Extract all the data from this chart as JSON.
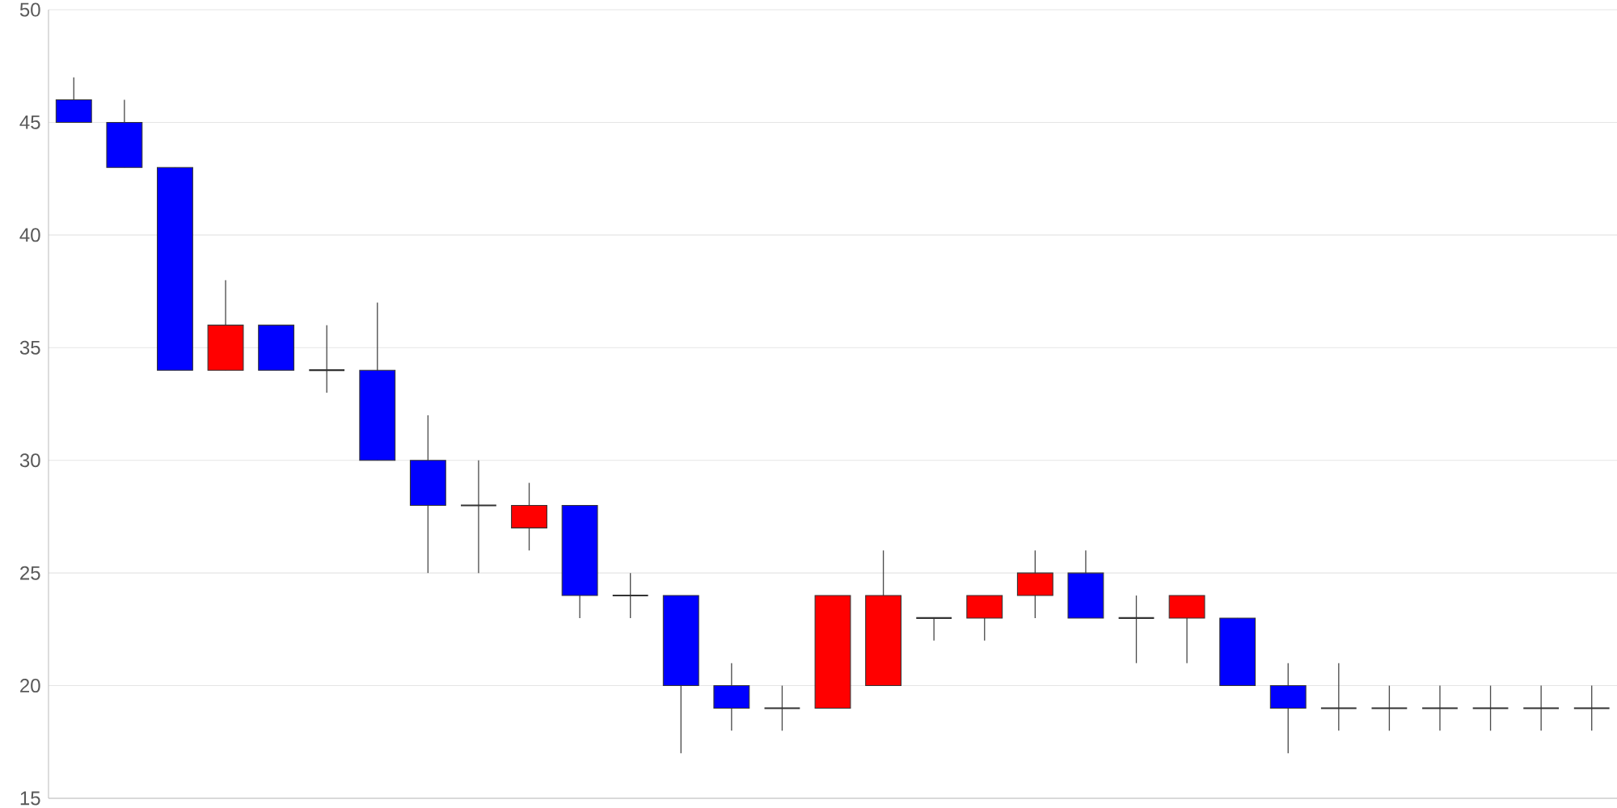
{
  "chart_data": {
    "type": "candlestick",
    "categories": [
      null,
      null,
      null,
      null,
      null,
      null,
      null,
      null,
      null,
      null,
      null,
      null,
      null,
      null,
      null,
      null,
      null,
      null,
      null,
      null,
      null,
      null,
      null,
      null,
      null,
      null,
      null,
      null,
      null,
      null,
      null
    ],
    "ohlc": [
      [
        46,
        47,
        45,
        45
      ],
      [
        45,
        46,
        43,
        43
      ],
      [
        43,
        43,
        34,
        34
      ],
      [
        34,
        38,
        34,
        36
      ],
      [
        36,
        36,
        34,
        34
      ],
      [
        34,
        36,
        33,
        34
      ],
      [
        34,
        37,
        30,
        30
      ],
      [
        30,
        32,
        25,
        28
      ],
      [
        28,
        30,
        25,
        28
      ],
      [
        27,
        29,
        26,
        28
      ],
      [
        28,
        28,
        23,
        24
      ],
      [
        24,
        25,
        23,
        24
      ],
      [
        24,
        24,
        17,
        20
      ],
      [
        20,
        21,
        18,
        19
      ],
      [
        19,
        20,
        18,
        19
      ],
      [
        19,
        24,
        19,
        24
      ],
      [
        20,
        26,
        20,
        24
      ],
      [
        23,
        23,
        22,
        23
      ],
      [
        23,
        24,
        22,
        24
      ],
      [
        24,
        26,
        23,
        25
      ],
      [
        25,
        26,
        23,
        23
      ],
      [
        23,
        24,
        21,
        23
      ],
      [
        23,
        24,
        21,
        24
      ],
      [
        23,
        23,
        20,
        20
      ],
      [
        20,
        21,
        17,
        19
      ],
      [
        19,
        21,
        18,
        19
      ],
      [
        19,
        20,
        18,
        19
      ],
      [
        19,
        20,
        18,
        19
      ],
      [
        19,
        20,
        18,
        19
      ],
      [
        19,
        20,
        18,
        19
      ],
      [
        19,
        20,
        18,
        19
      ]
    ],
    "colors": [
      "#0000ff",
      "#0000ff",
      "#0000ff",
      "#ff0000",
      "#0000ff",
      "#333333",
      "#0000ff",
      "#0000ff",
      "#333333",
      "#ff0000",
      "#0000ff",
      "#333333",
      "#0000ff",
      "#0000ff",
      "#333333",
      "#ff0000",
      "#ff0000",
      "#333333",
      "#ff0000",
      "#ff0000",
      "#0000ff",
      "#333333",
      "#ff0000",
      "#0000ff",
      "#0000ff",
      "#333333",
      "#333333",
      "#333333",
      "#333333",
      "#333333",
      "#333333"
    ],
    "ylim": [
      15,
      50
    ],
    "yticks": [
      15,
      20,
      25,
      30,
      35,
      40,
      45,
      50
    ],
    "grid": "y",
    "tick_labels": "y"
  }
}
